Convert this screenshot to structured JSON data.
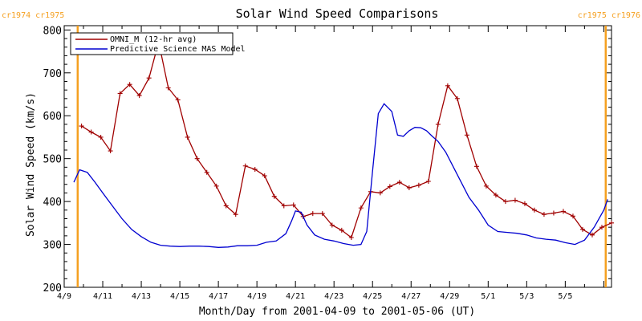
{
  "chart_data": {
    "type": "line",
    "title": "Solar Wind Speed Comparisons",
    "xlabel": "Month/Day from 2001-04-09 to 2001-05-06 (UT)",
    "ylabel": "Solar Wind Speed (km/s)",
    "xlim": [
      0,
      28.4
    ],
    "ylim": [
      200,
      810
    ],
    "yticks": [
      200,
      300,
      400,
      500,
      600,
      700,
      800
    ],
    "xticks": [
      {
        "day": 0,
        "label": "4/9"
      },
      {
        "day": 2,
        "label": "4/11"
      },
      {
        "day": 4,
        "label": "4/13"
      },
      {
        "day": 6,
        "label": "4/15"
      },
      {
        "day": 8,
        "label": "4/17"
      },
      {
        "day": 10,
        "label": "4/19"
      },
      {
        "day": 12,
        "label": "4/21"
      },
      {
        "day": 14,
        "label": "4/23"
      },
      {
        "day": 16,
        "label": "4/25"
      },
      {
        "day": 18,
        "label": "4/27"
      },
      {
        "day": 20,
        "label": "4/29"
      },
      {
        "day": 22,
        "label": "5/1"
      },
      {
        "day": 24,
        "label": "5/3"
      },
      {
        "day": 26,
        "label": "5/5"
      }
    ],
    "grid": false,
    "legend_position": "top-left",
    "rotation_markers": [
      {
        "day": 0.7,
        "label": "cr1974 cr1975",
        "color": "#f5a020"
      },
      {
        "day": 28.1,
        "label": "cr1975 cr1976",
        "color": "#f5a020"
      }
    ],
    "series": [
      {
        "name": "OMNI_M (12-hr avg)",
        "color": "#a00000",
        "marker": "plus",
        "x": [
          0.9,
          1.4,
          1.9,
          2.4,
          2.9,
          3.4,
          3.9,
          4.4,
          4.9,
          5.4,
          5.9,
          6.4,
          6.9,
          7.4,
          7.9,
          8.4,
          8.9,
          9.4,
          9.9,
          10.4,
          10.9,
          11.4,
          11.9,
          12.4,
          12.9,
          13.4,
          13.9,
          14.4,
          14.9,
          15.4,
          15.9,
          16.4,
          16.9,
          17.4,
          17.9,
          18.4,
          18.9,
          19.4,
          19.9,
          20.4,
          20.9,
          21.4,
          21.9,
          22.4,
          22.9,
          23.4,
          23.9,
          24.4,
          24.9,
          25.4,
          25.9,
          26.4,
          26.9,
          27.4,
          27.9,
          28.4
        ],
        "y": [
          576,
          562,
          550,
          518,
          652,
          673,
          647,
          688,
          772,
          665,
          637,
          550,
          500,
          468,
          436,
          390,
          370,
          483,
          475,
          460,
          412,
          390,
          392,
          365,
          372,
          372,
          345,
          333,
          316,
          385,
          423,
          420,
          435,
          445,
          432,
          438,
          447,
          580,
          670,
          640,
          555,
          482,
          436,
          415,
          400,
          403,
          395,
          380,
          370,
          373,
          377,
          366,
          335,
          322,
          340,
          350
        ]
      },
      {
        "name": "Predictive Science MAS Model",
        "color": "#0000d0",
        "marker": "none",
        "x": [
          0.5,
          0.8,
          1.2,
          1.6,
          2.0,
          2.5,
          3.0,
          3.5,
          4.0,
          4.5,
          5.0,
          5.5,
          6.0,
          6.5,
          7.0,
          7.5,
          8.0,
          8.5,
          9.0,
          9.5,
          10.0,
          10.5,
          11.0,
          11.5,
          11.8,
          12.0,
          12.3,
          12.6,
          13.0,
          13.5,
          14.0,
          14.5,
          15.0,
          15.4,
          15.7,
          16.0,
          16.3,
          16.6,
          17.0,
          17.3,
          17.6,
          17.9,
          18.2,
          18.5,
          18.8,
          19.1,
          19.4,
          19.8,
          20.2,
          20.6,
          21.0,
          21.5,
          22.0,
          22.5,
          23.0,
          23.5,
          24.0,
          24.5,
          25.0,
          25.5,
          26.0,
          26.5,
          27.0,
          27.5,
          28.0,
          28.2
        ],
        "y": [
          445,
          474,
          468,
          445,
          420,
          390,
          360,
          335,
          318,
          305,
          298,
          296,
          295,
          296,
          296,
          295,
          293,
          294,
          297,
          297,
          298,
          305,
          308,
          325,
          355,
          378,
          375,
          345,
          322,
          312,
          308,
          302,
          298,
          300,
          330,
          470,
          605,
          628,
          610,
          555,
          552,
          565,
          573,
          572,
          565,
          552,
          540,
          515,
          480,
          445,
          410,
          380,
          345,
          330,
          328,
          326,
          322,
          315,
          312,
          310,
          304,
          300,
          310,
          340,
          380,
          405
        ]
      }
    ]
  }
}
